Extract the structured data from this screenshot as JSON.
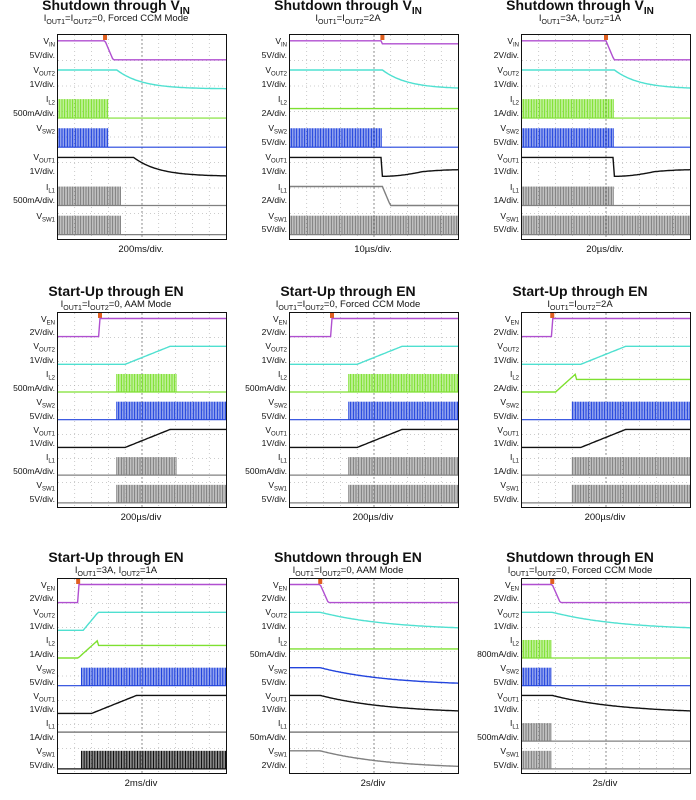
{
  "chart_data": [
    {
      "type": "line",
      "title": "Shutdown through VIN",
      "title_main": "Shutdown through V",
      "title_sub": "IN",
      "condition": "IOUT1=IOUT2=0, Forced CCM Mode",
      "timebase": "200ms/div.",
      "channels": [
        {
          "name": "VIN",
          "scale": "5V/div.",
          "color": "#b04fd0",
          "kind": "step_down",
          "edge": 0.28
        },
        {
          "name": "VOUT2",
          "scale": "1V/div.",
          "color": "#4fe0d0",
          "kind": "decay",
          "edge": 0.35
        },
        {
          "name": "IL2",
          "scale": "500mA/div.",
          "color": "#7ee030",
          "kind": "burst_then_flat",
          "edge": 0.3
        },
        {
          "name": "VSW2",
          "scale": "",
          "color": "#2244dd",
          "kind": "burst_then_flat",
          "edge": 0.3
        },
        {
          "name": "VOUT1",
          "scale": "1V/div.",
          "color": "#111111",
          "kind": "decay",
          "edge": 0.45
        },
        {
          "name": "IL1",
          "scale": "500mA/div.",
          "color": "#808080",
          "kind": "burst_then_flat",
          "edge": 0.38
        },
        {
          "name": "VSW1",
          "scale": "",
          "color": "#808080",
          "kind": "burst_then_flat",
          "edge": 0.38
        }
      ]
    },
    {
      "type": "line",
      "title": "Shutdown through VIN",
      "title_main": "Shutdown through V",
      "title_sub": "IN",
      "condition": "IOUT1=IOUT2=2A",
      "timebase": "10µs/div.",
      "channels": [
        {
          "name": "VIN",
          "scale": "5V/div.",
          "color": "#b04fd0",
          "kind": "step_down_small",
          "edge": 0.55
        },
        {
          "name": "VOUT2",
          "scale": "1V/div.",
          "color": "#4fe0d0",
          "kind": "decay",
          "edge": 0.55
        },
        {
          "name": "IL2",
          "scale": "2A/div.",
          "color": "#7ee030",
          "kind": "flat",
          "edge": 0.0
        },
        {
          "name": "VSW2",
          "scale": "5V/div.",
          "color": "#2244dd",
          "kind": "burst_then_flat",
          "edge": 0.55
        },
        {
          "name": "VOUT1",
          "scale": "1V/div.",
          "color": "#111111",
          "kind": "dip_recover",
          "edge": 0.55
        },
        {
          "name": "IL1",
          "scale": "2A/div.",
          "color": "#808080",
          "kind": "step_down",
          "edge": 0.55
        },
        {
          "name": "VSW1",
          "scale": "5V/div.",
          "color": "#808080",
          "kind": "burst_full",
          "edge": 0.0
        }
      ]
    },
    {
      "type": "line",
      "title": "Shutdown through VIN",
      "title_main": "Shutdown through V",
      "title_sub": "IN",
      "condition": "IOUT1=3A, IOUT2=1A",
      "timebase": "20µs/div.",
      "channels": [
        {
          "name": "VIN",
          "scale": "2V/div.",
          "color": "#b04fd0",
          "kind": "step_down",
          "edge": 0.5
        },
        {
          "name": "VOUT2",
          "scale": "1V/div.",
          "color": "#4fe0d0",
          "kind": "decay",
          "edge": 0.55
        },
        {
          "name": "IL2",
          "scale": "1A/div.",
          "color": "#7ee030",
          "kind": "burst_then_flat",
          "edge": 0.55
        },
        {
          "name": "VSW2",
          "scale": "5V/div.",
          "color": "#2244dd",
          "kind": "burst_then_flat",
          "edge": 0.55
        },
        {
          "name": "VOUT1",
          "scale": "1V/div.",
          "color": "#111111",
          "kind": "dip_recover",
          "edge": 0.55
        },
        {
          "name": "IL1",
          "scale": "1A/div.",
          "color": "#808080",
          "kind": "burst_then_flat",
          "edge": 0.55
        },
        {
          "name": "VSW1",
          "scale": "5V/div.",
          "color": "#808080",
          "kind": "burst_full",
          "edge": 0.0
        }
      ]
    },
    {
      "type": "line",
      "title": "Start-Up through EN",
      "title_main": "Start-Up through EN",
      "title_sub": "",
      "condition": "IOUT1=IOUT2=0, AAM Mode",
      "timebase": "200µs/div",
      "channels": [
        {
          "name": "VEN",
          "scale": "2V/div.",
          "color": "#b04fd0",
          "kind": "step_up",
          "edge": 0.25
        },
        {
          "name": "VOUT2",
          "scale": "1V/div.",
          "color": "#4fe0d0",
          "kind": "rise",
          "edge": 0.4
        },
        {
          "name": "IL2",
          "scale": "500mA/div.",
          "color": "#7ee030",
          "kind": "burst_window",
          "edge": 0.35
        },
        {
          "name": "VSW2",
          "scale": "5V/div.",
          "color": "#2244dd",
          "kind": "start_burst",
          "edge": 0.35
        },
        {
          "name": "VOUT1",
          "scale": "1V/div.",
          "color": "#111111",
          "kind": "rise",
          "edge": 0.4
        },
        {
          "name": "IL1",
          "scale": "500mA/div.",
          "color": "#808080",
          "kind": "burst_window",
          "edge": 0.35
        },
        {
          "name": "VSW1",
          "scale": "5V/div.",
          "color": "#808080",
          "kind": "start_burst",
          "edge": 0.35
        }
      ]
    },
    {
      "type": "line",
      "title": "Start-Up through EN",
      "title_main": "Start-Up through EN",
      "title_sub": "",
      "condition": "IOUT1=IOUT2=0, Forced CCM Mode",
      "timebase": "200µs/div",
      "channels": [
        {
          "name": "VEN",
          "scale": "2V/div.",
          "color": "#b04fd0",
          "kind": "step_up",
          "edge": 0.25
        },
        {
          "name": "VOUT2",
          "scale": "1V/div.",
          "color": "#4fe0d0",
          "kind": "rise",
          "edge": 0.4
        },
        {
          "name": "IL2",
          "scale": "500mA/div.",
          "color": "#7ee030",
          "kind": "start_burst",
          "edge": 0.35
        },
        {
          "name": "VSW2",
          "scale": "5V/div.",
          "color": "#2244dd",
          "kind": "start_burst",
          "edge": 0.35
        },
        {
          "name": "VOUT1",
          "scale": "1V/div.",
          "color": "#111111",
          "kind": "rise",
          "edge": 0.4
        },
        {
          "name": "IL1",
          "scale": "500mA/div.",
          "color": "#808080",
          "kind": "start_burst",
          "edge": 0.35
        },
        {
          "name": "VSW1",
          "scale": "5V/div.",
          "color": "#808080",
          "kind": "start_burst",
          "edge": 0.35
        }
      ]
    },
    {
      "type": "line",
      "title": "Start-Up through EN",
      "title_main": "Start-Up through EN",
      "title_sub": "",
      "condition": "IOUT1=IOUT2=2A",
      "timebase": "200µs/div",
      "channels": [
        {
          "name": "VEN",
          "scale": "2V/div.",
          "color": "#b04fd0",
          "kind": "step_up",
          "edge": 0.18
        },
        {
          "name": "VOUT2",
          "scale": "1V/div.",
          "color": "#4fe0d0",
          "kind": "rise",
          "edge": 0.35
        },
        {
          "name": "IL2",
          "scale": "2A/div.",
          "color": "#7ee030",
          "kind": "ramp_peak",
          "edge": 0.2
        },
        {
          "name": "VSW2",
          "scale": "5V/div.",
          "color": "#2244dd",
          "kind": "start_burst",
          "edge": 0.3
        },
        {
          "name": "VOUT1",
          "scale": "1V/div.",
          "color": "#111111",
          "kind": "rise",
          "edge": 0.35
        },
        {
          "name": "IL1",
          "scale": "1A/div.",
          "color": "#808080",
          "kind": "start_burst",
          "edge": 0.3
        },
        {
          "name": "VSW1",
          "scale": "5V/div.",
          "color": "#808080",
          "kind": "start_burst",
          "edge": 0.3
        }
      ]
    },
    {
      "type": "line",
      "title": "Start-Up through EN",
      "title_main": "Start-Up through EN",
      "title_sub": "",
      "condition": "IOUT1=3A, IOUT2=1A",
      "timebase": "2ms/div",
      "channels": [
        {
          "name": "VEN",
          "scale": "2V/div.",
          "color": "#b04fd0",
          "kind": "step_up",
          "edge": 0.12
        },
        {
          "name": "VOUT2",
          "scale": "1V/div.",
          "color": "#4fe0d0",
          "kind": "rise_fast",
          "edge": 0.15
        },
        {
          "name": "IL2",
          "scale": "1A/div.",
          "color": "#7ee030",
          "kind": "ramp_peak",
          "edge": 0.12
        },
        {
          "name": "VSW2",
          "scale": "5V/div.",
          "color": "#2244dd",
          "kind": "start_burst",
          "edge": 0.14
        },
        {
          "name": "VOUT1",
          "scale": "1V/div.",
          "color": "#111111",
          "kind": "rise",
          "edge": 0.2
        },
        {
          "name": "IL1",
          "scale": "1A/div.",
          "color": "#808080",
          "kind": "flat",
          "edge": 0.0
        },
        {
          "name": "VSW1",
          "scale": "5V/div.",
          "color": "#111111",
          "kind": "start_burst",
          "edge": 0.14
        }
      ]
    },
    {
      "type": "line",
      "title": "Shutdown through EN",
      "title_main": "Shutdown through EN",
      "title_sub": "",
      "condition": "IOUT1=IOUT2=0, AAM Mode",
      "timebase": "2s/div",
      "channels": [
        {
          "name": "VEN",
          "scale": "2V/div.",
          "color": "#b04fd0",
          "kind": "step_down",
          "edge": 0.18
        },
        {
          "name": "VOUT2",
          "scale": "1V/div.",
          "color": "#4fe0d0",
          "kind": "slow_decay",
          "edge": 0.18
        },
        {
          "name": "IL2",
          "scale": "50mA/div.",
          "color": "#7ee030",
          "kind": "flat",
          "edge": 0.0
        },
        {
          "name": "VSW2",
          "scale": "5V/div.",
          "color": "#2244dd",
          "kind": "slow_decay",
          "edge": 0.18
        },
        {
          "name": "VOUT1",
          "scale": "1V/div.",
          "color": "#111111",
          "kind": "slow_decay",
          "edge": 0.18
        },
        {
          "name": "IL1",
          "scale": "50mA/div.",
          "color": "#808080",
          "kind": "flat",
          "edge": 0.0
        },
        {
          "name": "VSW1",
          "scale": "2V/div.",
          "color": "#808080",
          "kind": "slow_decay",
          "edge": 0.18
        }
      ]
    },
    {
      "type": "line",
      "title": "Shutdown through EN",
      "title_main": "Shutdown through EN",
      "title_sub": "",
      "condition": "IOUT1=IOUT2=0, Forced CCM Mode",
      "timebase": "2s/div",
      "channels": [
        {
          "name": "VEN",
          "scale": "2V/div.",
          "color": "#b04fd0",
          "kind": "step_down",
          "edge": 0.18
        },
        {
          "name": "VOUT2",
          "scale": "1V/div.",
          "color": "#4fe0d0",
          "kind": "slow_decay",
          "edge": 0.18
        },
        {
          "name": "IL2",
          "scale": "800mA/div.",
          "color": "#7ee030",
          "kind": "burst_then_flat",
          "edge": 0.18
        },
        {
          "name": "VSW2",
          "scale": "5V/div.",
          "color": "#2244dd",
          "kind": "burst_then_flat",
          "edge": 0.18
        },
        {
          "name": "VOUT1",
          "scale": "1V/div.",
          "color": "#111111",
          "kind": "slow_decay",
          "edge": 0.18
        },
        {
          "name": "IL1",
          "scale": "500mA/div.",
          "color": "#808080",
          "kind": "burst_then_flat",
          "edge": 0.18
        },
        {
          "name": "VSW1",
          "scale": "5V/div.",
          "color": "#808080",
          "kind": "burst_then_flat",
          "edge": 0.18
        }
      ]
    }
  ]
}
